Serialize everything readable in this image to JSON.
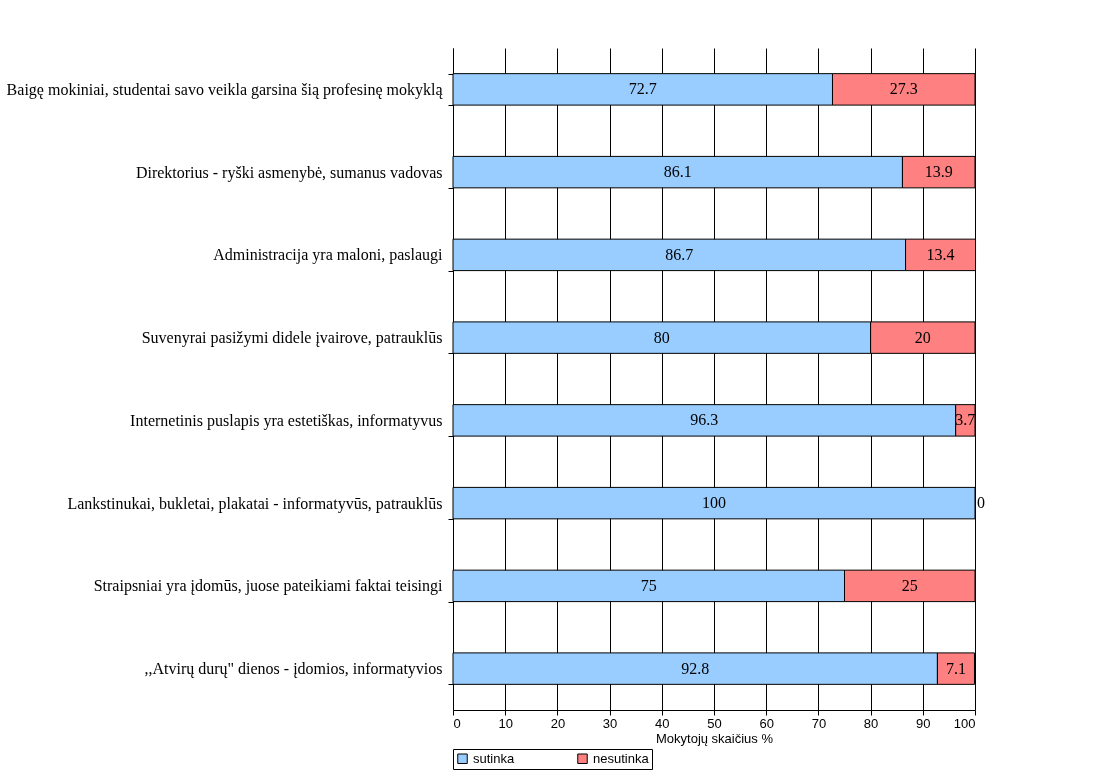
{
  "chart_data": {
    "type": "bar",
    "orientation": "horizontal",
    "stacked": true,
    "xlabel": "Mokytojų skaičius %",
    "categories": [
      "Baigę mokiniai, studentai savo veikla garsina šią profesinę mokyklą",
      "Direktorius - ryški asmenybė, sumanus vadovas",
      "Administracija yra maloni, paslaugi",
      "Suvenyrai pasižymi didele įvairove, patrauklūs",
      "Internetinis puslapis yra estetiškas, informatyvus",
      "Lankstinukai, bukletai, plakatai - informatyvūs, patrauklūs",
      "Straipsniai yra įdomūs, juose pateikiami faktai teisingi",
      ",,Atvirų durų\" dienos - įdomios, informatyvios"
    ],
    "series": [
      {
        "name": "sutinka",
        "color": "#99ccff",
        "values": [
          72.7,
          86.1,
          86.7,
          80,
          96.3,
          100,
          75,
          92.8
        ]
      },
      {
        "name": "nesutinka",
        "color": "#ff8080",
        "values": [
          27.3,
          13.9,
          13.4,
          20,
          3.7,
          0,
          25,
          7.1
        ]
      }
    ],
    "xlim": [
      0,
      100
    ],
    "xticks": [
      0,
      10,
      20,
      30,
      40,
      50,
      60,
      70,
      80,
      90,
      100
    ],
    "grid": "x",
    "legend": "bottom",
    "data_labels": true
  }
}
